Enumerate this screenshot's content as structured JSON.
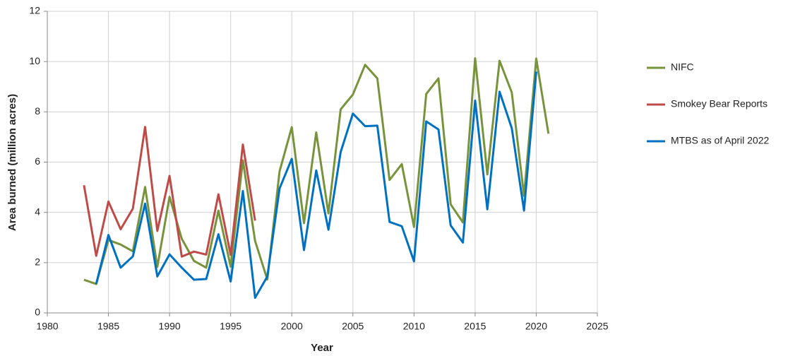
{
  "chart_data": {
    "type": "line",
    "x_label": "Year",
    "y_label": "Area burned (million acres)",
    "x": [
      1983,
      1984,
      1985,
      1986,
      1987,
      1988,
      1989,
      1990,
      1991,
      1992,
      1993,
      1994,
      1995,
      1996,
      1997,
      1998,
      1999,
      2000,
      2001,
      2002,
      2003,
      2004,
      2005,
      2006,
      2007,
      2008,
      2009,
      2010,
      2011,
      2012,
      2013,
      2014,
      2015,
      2016,
      2017,
      2018,
      2019,
      2020,
      2021
    ],
    "series": [
      {
        "name": "NIFC",
        "color": "#77933c",
        "values": [
          1.32,
          1.15,
          2.9,
          2.72,
          2.45,
          5.01,
          1.83,
          4.62,
          2.95,
          2.07,
          1.8,
          4.07,
          1.84,
          6.07,
          2.86,
          1.33,
          5.63,
          7.39,
          3.57,
          7.18,
          3.96,
          8.1,
          8.69,
          9.87,
          9.33,
          5.29,
          5.92,
          3.42,
          8.71,
          9.33,
          4.32,
          3.6,
          10.13,
          5.51,
          10.03,
          8.77,
          4.66,
          10.12,
          7.13
        ]
      },
      {
        "name": "Smokey Bear Reports",
        "color": "#be4b48",
        "values": [
          5.08,
          2.27,
          4.43,
          3.33,
          4.15,
          7.4,
          3.26,
          5.45,
          2.24,
          2.44,
          2.32,
          4.72,
          2.31,
          6.7,
          3.67,
          null,
          null,
          null,
          null,
          null,
          null,
          null,
          null,
          null,
          null,
          null,
          null,
          null,
          null,
          null,
          null,
          null,
          null,
          null,
          null,
          null,
          null,
          null,
          null
        ]
      },
      {
        "name": "MTBS as of April 2022",
        "color": "#0070c0",
        "values": [
          null,
          1.15,
          3.1,
          1.8,
          2.25,
          4.35,
          1.45,
          2.33,
          1.8,
          1.32,
          1.35,
          3.13,
          1.25,
          4.85,
          0.6,
          1.45,
          4.95,
          6.13,
          2.5,
          5.67,
          3.31,
          6.4,
          7.93,
          7.43,
          7.45,
          3.62,
          3.45,
          2.05,
          7.62,
          7.3,
          3.48,
          2.8,
          8.45,
          4.12,
          8.8,
          7.35,
          4.07,
          9.6,
          null
        ]
      }
    ],
    "xlim": [
      1980,
      2025
    ],
    "xticks": [
      1980,
      1985,
      1990,
      1995,
      2000,
      2005,
      2010,
      2015,
      2020,
      2025
    ],
    "ylim": [
      0,
      12
    ],
    "yticks": [
      0,
      2,
      4,
      6,
      8,
      10,
      12
    ],
    "grid": true,
    "legend": "right"
  }
}
